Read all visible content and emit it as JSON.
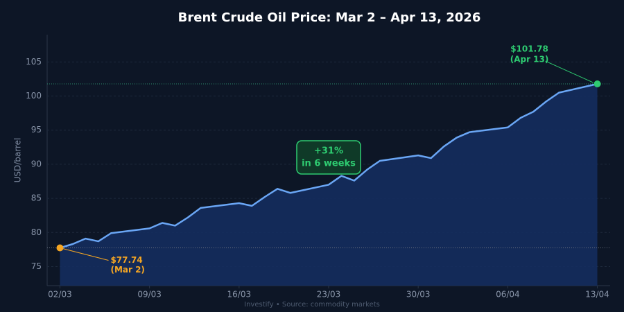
{
  "chart_data": {
    "type": "area-line",
    "title": "Brent Crude Oil Price: Mar 2 – Apr 13, 2026",
    "y_label": "USD/barrel",
    "source": "Investify  •  Source: commodity markets",
    "x": [
      "02/03",
      "03/03",
      "04/03",
      "05/03",
      "06/03",
      "09/03",
      "10/03",
      "11/03",
      "12/03",
      "13/03",
      "16/03",
      "17/03",
      "18/03",
      "19/03",
      "20/03",
      "23/03",
      "24/03",
      "25/03",
      "26/03",
      "27/03",
      "30/03",
      "31/03",
      "01/04",
      "02/04",
      "03/04",
      "06/04",
      "07/04",
      "08/04",
      "09/04",
      "10/04",
      "13/04"
    ],
    "series": [
      {
        "name": "Brent",
        "color": "#6aa6f5",
        "fill": "#142c5e",
        "values": [
          77.74,
          78.3,
          79.1,
          78.7,
          79.9,
          80.6,
          81.4,
          81.0,
          82.2,
          83.6,
          84.3,
          83.9,
          85.2,
          86.4,
          85.8,
          87.0,
          88.3,
          87.6,
          89.2,
          90.5,
          91.3,
          90.9,
          92.6,
          93.9,
          94.7,
          95.4,
          96.8,
          97.7,
          99.2,
          100.5,
          101.78
        ]
      }
    ],
    "xlim": [
      "01/03",
      "14/04"
    ],
    "xticks": [
      "02/03",
      "09/03",
      "16/03",
      "23/03",
      "30/03",
      "06/04",
      "13/04"
    ],
    "ylim": [
      72.2,
      109
    ],
    "yticks": [
      75,
      80,
      85,
      90,
      95,
      100,
      105
    ],
    "grid": true,
    "annotations": [
      {
        "lines": [
          "$77.74",
          "(Mar 2)"
        ],
        "color": "#f5a623"
      },
      {
        "lines": [
          "$101.78",
          "(Apr 13)"
        ],
        "color": "#2ecc71"
      },
      {
        "lines": [
          "+31%",
          "in 6 weeks"
        ],
        "color": "#2ecc71"
      }
    ]
  }
}
